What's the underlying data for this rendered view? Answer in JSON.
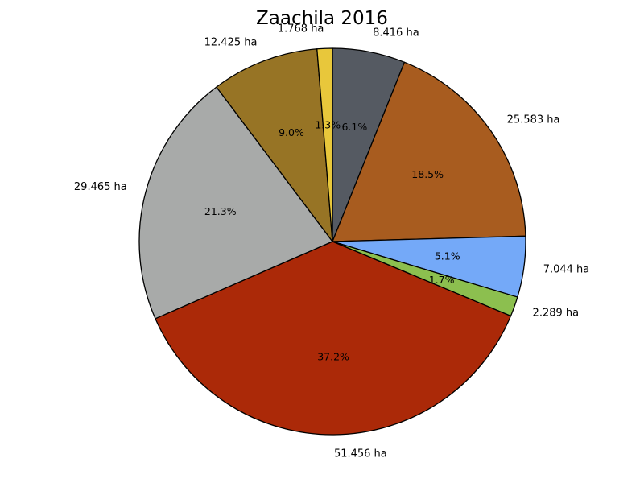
{
  "chart_data": {
    "type": "pie",
    "title": "Zaachila 2016",
    "start_angle_deg": 90,
    "direction": "clockwise",
    "slices": [
      {
        "label": "8.416 ha",
        "value": 8.416,
        "percent_label": "6.1%",
        "color": "#555a62"
      },
      {
        "label": "25.583 ha",
        "value": 25.583,
        "percent_label": "18.5%",
        "color": "#a85c1f"
      },
      {
        "label": "7.044 ha",
        "value": 7.044,
        "percent_label": "5.1%",
        "color": "#74a9f8"
      },
      {
        "label": "2.289 ha",
        "value": 2.289,
        "percent_label": "1.7%",
        "color": "#8cbf4f"
      },
      {
        "label": "51.456 ha",
        "value": 51.456,
        "percent_label": "37.2%",
        "color": "#ab2908"
      },
      {
        "label": "29.465 ha",
        "value": 29.465,
        "percent_label": "21.3%",
        "color": "#a8aaa9"
      },
      {
        "label": "12.425 ha",
        "value": 12.425,
        "percent_label": "9.0%",
        "color": "#977425"
      },
      {
        "label": "1.768 ha",
        "value": 1.768,
        "percent_label": "1.3%",
        "color": "#e8c73b"
      }
    ]
  }
}
